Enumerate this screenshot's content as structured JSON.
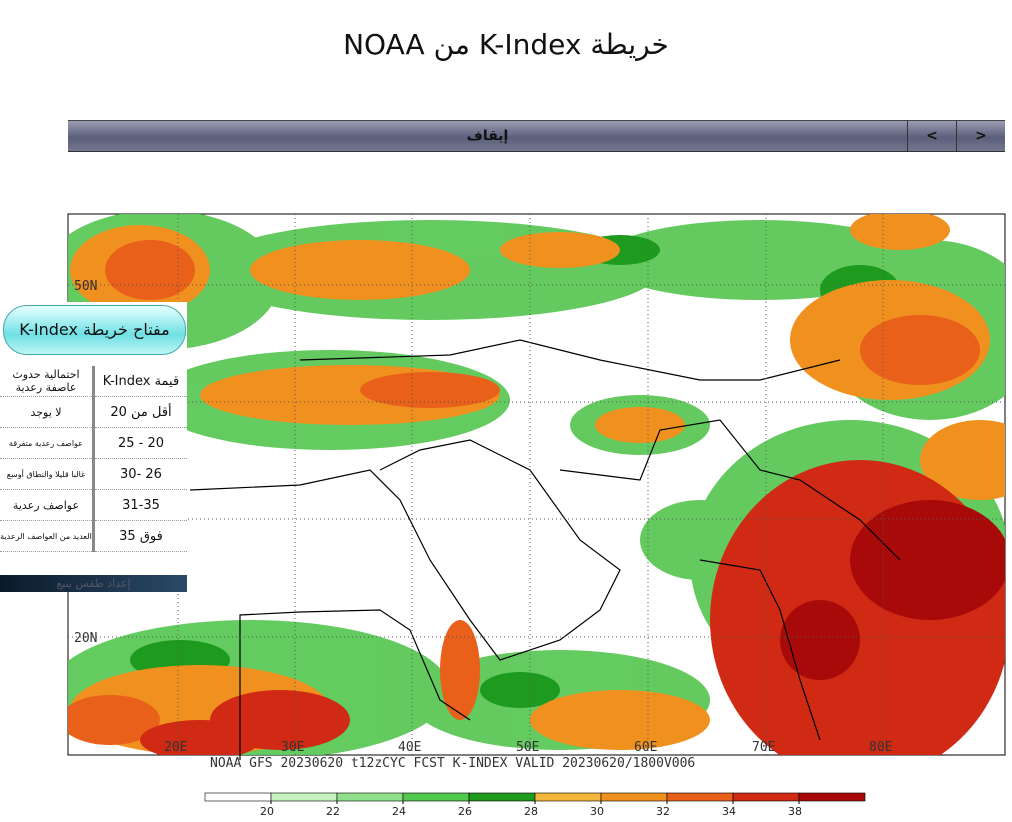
{
  "header": {
    "title": "خريطة K-Index من NOAA"
  },
  "controls": {
    "stop": "إيقاف",
    "prev": "<",
    "next": ">"
  },
  "map": {
    "lat_labels": [
      "50N",
      "20N"
    ],
    "lon_labels": [
      "20E",
      "30E",
      "40E",
      "50E",
      "60E",
      "70E",
      "80E"
    ],
    "caption": "NOAA GFS 20230620 t12zCYC FCST K-INDEX    VALID 20230620/1800V006"
  },
  "colorbar": {
    "ticks": [
      20,
      22,
      24,
      26,
      28,
      30,
      32,
      34,
      38
    ],
    "colors": [
      "#ffffff",
      "#c6f2c0",
      "#8ee08a",
      "#52c84e",
      "#1e9a1e",
      "#f2b63a",
      "#f0901e",
      "#e8601a",
      "#d02a14",
      "#a80a0a"
    ]
  },
  "legend": {
    "title": "مفتاح خريطة K-Index",
    "header": [
      "قيمة K-Index",
      "احتمالية حدوث عاصفة رعدية"
    ],
    "rows": [
      [
        "أقل من 20",
        "لا يوجد"
      ],
      [
        "20 - 25",
        "عواصف رعدية متفرقة"
      ],
      [
        "26 -30",
        "غالبا قليلا والنطاق أوسع"
      ],
      [
        "31-35",
        "عواصف رعدية"
      ],
      [
        "فوق 35",
        "العديد من العواصف الرعدية"
      ]
    ],
    "footer": "إعداد طقس ينبع"
  }
}
